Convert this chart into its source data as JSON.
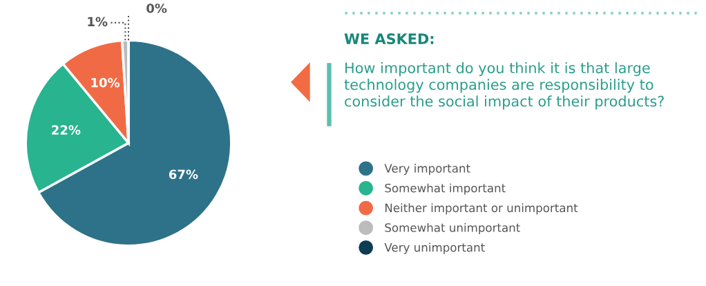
{
  "chart_data": {
    "type": "pie",
    "title": "WE ASKED:",
    "subtitle": "How important do you think it is that large technology companies are responsibility to consider the social impact of their products?",
    "categories": [
      "Very important",
      "Somewhat important",
      "Neither important or unimportant",
      "Somewhat unimportant",
      "Very unimportant"
    ],
    "values": [
      67,
      22,
      10,
      1,
      0
    ],
    "colors": [
      "#2e7289",
      "#27b48f",
      "#f06b45",
      "#bcbcbc",
      "#0d3d52"
    ],
    "value_labels": [
      "67%",
      "22%",
      "10%",
      "1%",
      "0%"
    ],
    "legend": "right"
  }
}
